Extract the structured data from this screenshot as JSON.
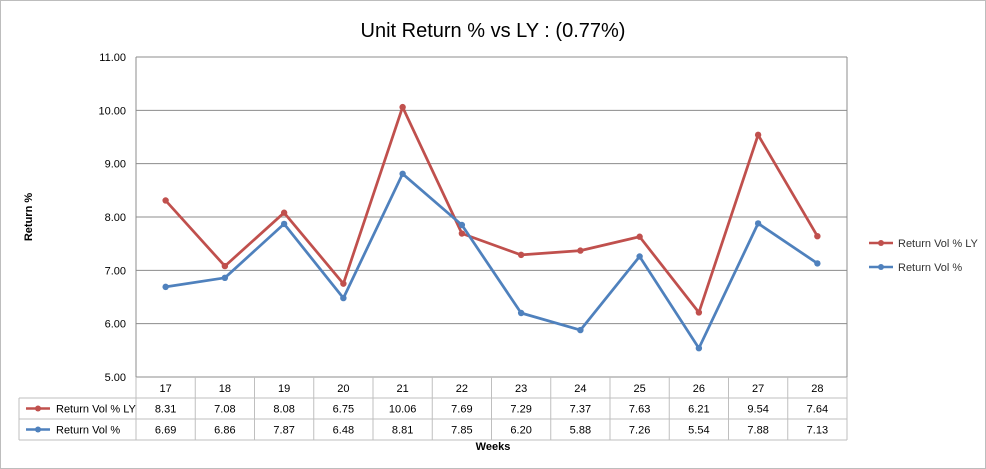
{
  "chart_data": {
    "type": "line",
    "title": "Unit Return % vs LY : (0.77%)",
    "xlabel": "Weeks",
    "ylabel": "Return %",
    "ylim": [
      5.0,
      11.0
    ],
    "y_ticks": [
      "5.00",
      "6.00",
      "7.00",
      "8.00",
      "9.00",
      "10.00",
      "11.00"
    ],
    "grid": true,
    "legend_position": "right",
    "categories": [
      "17",
      "18",
      "19",
      "20",
      "21",
      "22",
      "23",
      "24",
      "25",
      "26",
      "27",
      "28"
    ],
    "series": [
      {
        "name": "Return Vol % LY",
        "color": "#c0504d",
        "values": [
          8.31,
          7.08,
          8.08,
          6.75,
          10.06,
          7.69,
          7.29,
          7.37,
          7.63,
          6.21,
          9.54,
          7.64
        ],
        "labels": [
          "8.31",
          "7.08",
          "8.08",
          "6.75",
          "10.06",
          "7.69",
          "7.29",
          "7.37",
          "7.63",
          "6.21",
          "9.54",
          "7.64"
        ]
      },
      {
        "name": "Return Vol %",
        "color": "#4f81bd",
        "values": [
          6.69,
          6.86,
          7.87,
          6.48,
          8.81,
          7.85,
          6.2,
          5.88,
          7.26,
          5.54,
          7.88,
          7.13
        ],
        "labels": [
          "6.69",
          "6.86",
          "7.87",
          "6.48",
          "8.81",
          "7.85",
          "6.20",
          "5.88",
          "7.26",
          "5.54",
          "7.88",
          "7.13"
        ]
      }
    ]
  }
}
